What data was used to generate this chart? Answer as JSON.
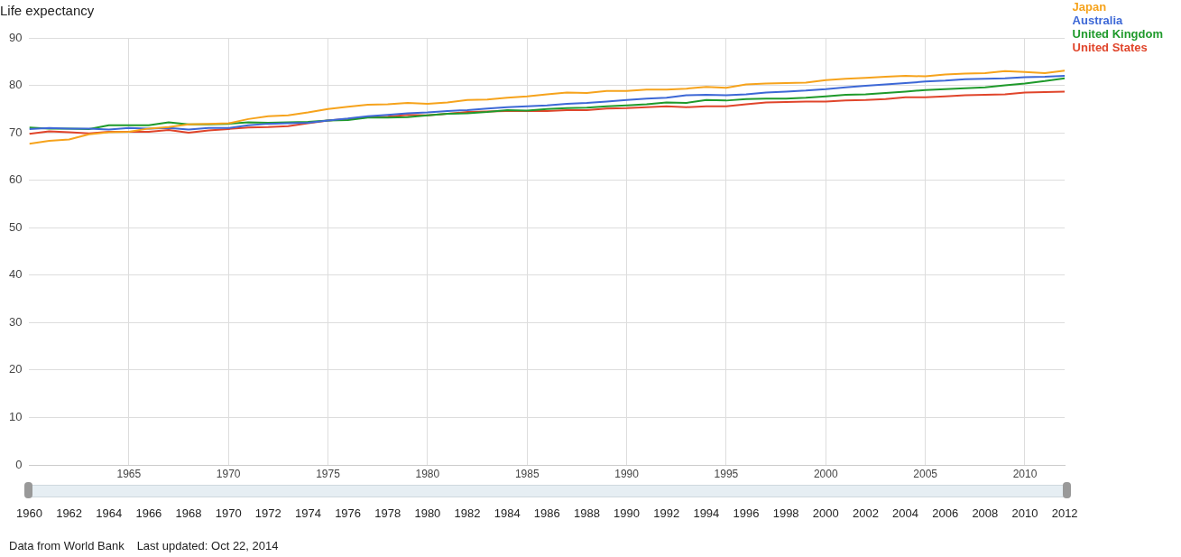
{
  "chart_data": {
    "type": "line",
    "title": "Life expectancy",
    "x": [
      1960,
      1961,
      1962,
      1963,
      1964,
      1965,
      1966,
      1967,
      1968,
      1969,
      1970,
      1971,
      1972,
      1973,
      1974,
      1975,
      1976,
      1977,
      1978,
      1979,
      1980,
      1981,
      1982,
      1983,
      1984,
      1985,
      1986,
      1987,
      1988,
      1989,
      1990,
      1991,
      1992,
      1993,
      1994,
      1995,
      1996,
      1997,
      1998,
      1999,
      2000,
      2001,
      2002,
      2003,
      2004,
      2005,
      2006,
      2007,
      2008,
      2009,
      2010,
      2011,
      2012
    ],
    "series": [
      {
        "name": "Japan",
        "color": "#f6a31c",
        "values": [
          67.7,
          68.3,
          68.6,
          69.7,
          70.1,
          70.2,
          70.9,
          71.2,
          71.8,
          71.9,
          72.0,
          72.9,
          73.5,
          73.7,
          74.3,
          75.0,
          75.5,
          75.9,
          76.0,
          76.3,
          76.1,
          76.4,
          76.9,
          77.0,
          77.4,
          77.7,
          78.1,
          78.5,
          78.4,
          78.8,
          78.8,
          79.1,
          79.1,
          79.3,
          79.7,
          79.5,
          80.2,
          80.4,
          80.5,
          80.6,
          81.1,
          81.4,
          81.6,
          81.8,
          82.0,
          81.9,
          82.3,
          82.5,
          82.6,
          83.0,
          82.8,
          82.6,
          83.1
        ]
      },
      {
        "name": "Australia",
        "color": "#3d68d6",
        "values": [
          70.8,
          71.0,
          70.9,
          70.9,
          70.7,
          71.0,
          70.9,
          71.0,
          70.7,
          71.0,
          71.0,
          71.6,
          71.9,
          72.0,
          72.1,
          72.6,
          73.0,
          73.5,
          73.8,
          74.1,
          74.3,
          74.6,
          74.8,
          75.1,
          75.4,
          75.6,
          75.8,
          76.1,
          76.3,
          76.6,
          76.9,
          77.2,
          77.4,
          77.9,
          78.0,
          77.9,
          78.1,
          78.5,
          78.7,
          78.9,
          79.2,
          79.6,
          79.9,
          80.2,
          80.5,
          80.8,
          81.0,
          81.3,
          81.4,
          81.5,
          81.7,
          81.8,
          82.0
        ]
      },
      {
        "name": "United Kingdom",
        "color": "#1f9a2b",
        "values": [
          71.1,
          70.9,
          70.9,
          70.8,
          71.6,
          71.6,
          71.6,
          72.2,
          71.8,
          71.8,
          71.9,
          72.2,
          72.1,
          72.2,
          72.3,
          72.6,
          72.7,
          73.2,
          73.2,
          73.3,
          73.7,
          74.0,
          74.1,
          74.4,
          74.8,
          74.7,
          75.0,
          75.2,
          75.3,
          75.6,
          75.8,
          76.0,
          76.4,
          76.3,
          76.9,
          76.8,
          77.1,
          77.2,
          77.2,
          77.4,
          77.7,
          78.0,
          78.1,
          78.4,
          78.7,
          79.0,
          79.2,
          79.4,
          79.6,
          80.0,
          80.4,
          80.9,
          81.5
        ]
      },
      {
        "name": "United States",
        "color": "#e0452b",
        "values": [
          69.8,
          70.3,
          70.1,
          69.9,
          70.2,
          70.2,
          70.2,
          70.6,
          70.0,
          70.5,
          70.8,
          71.1,
          71.2,
          71.4,
          72.0,
          72.6,
          72.9,
          73.3,
          73.4,
          73.8,
          73.7,
          74.0,
          74.4,
          74.5,
          74.6,
          74.6,
          74.6,
          74.8,
          74.8,
          75.1,
          75.2,
          75.4,
          75.6,
          75.4,
          75.6,
          75.6,
          76.0,
          76.4,
          76.5,
          76.6,
          76.6,
          76.8,
          76.9,
          77.1,
          77.5,
          77.5,
          77.7,
          77.9,
          78.0,
          78.1,
          78.5,
          78.6,
          78.7
        ]
      }
    ],
    "xlim": [
      1960,
      2012
    ],
    "xticks": [
      1965,
      1970,
      1975,
      1980,
      1985,
      1990,
      1995,
      2000,
      2005,
      2010
    ],
    "ylim": [
      0,
      90
    ],
    "yticks": [
      0,
      10,
      20,
      30,
      40,
      50,
      60,
      70,
      80,
      90
    ],
    "x2lim": [
      1960,
      2012
    ],
    "x2ticks": [
      1960,
      1962,
      1964,
      1966,
      1968,
      1970,
      1972,
      1974,
      1976,
      1978,
      1980,
      1982,
      1984,
      1986,
      1988,
      1990,
      1992,
      1994,
      1996,
      1998,
      2000,
      2002,
      2004,
      2006,
      2008,
      2010,
      2012
    ],
    "grid": true,
    "legend": "right",
    "marker": "none",
    "line_style": "solid",
    "annotations": [
      "Data from World Bank",
      "Last updated: Oct 22, 2014"
    ]
  }
}
